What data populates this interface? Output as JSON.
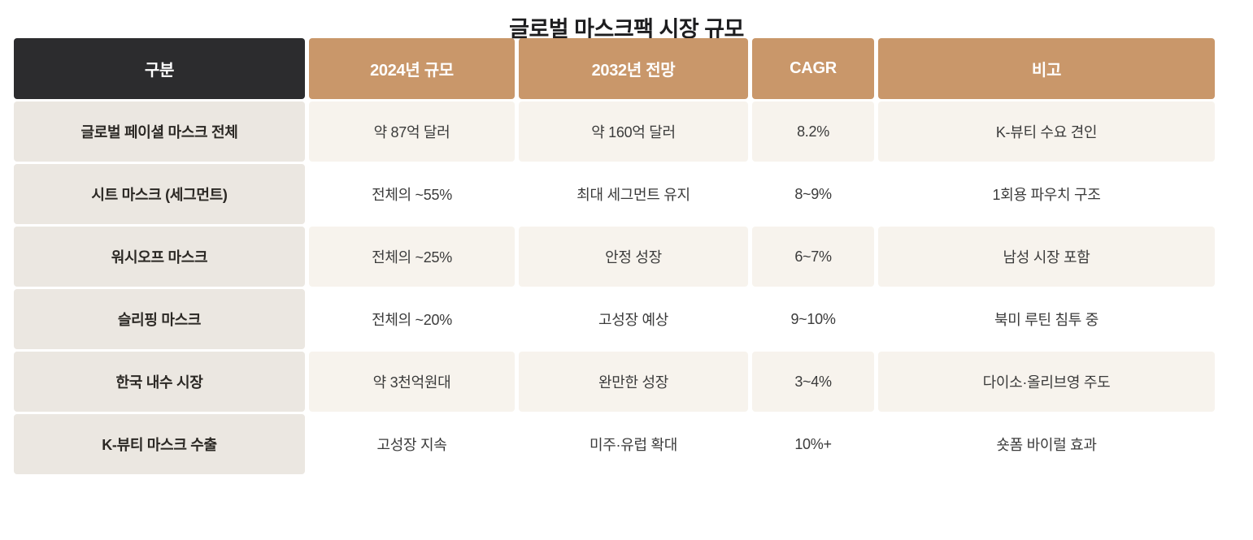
{
  "title": "글로벌 마스크팩 시장 규모",
  "colors": {
    "header_dark": "#2c2c2e",
    "header_tan": "#c9976a",
    "row_label_bg": "#ebe7e1",
    "row_odd_bg": "#f7f3ed",
    "row_even_bg": "#ffffff",
    "title_text": "#1d1d1f",
    "body_text": "#3b3b3b"
  },
  "table": {
    "headers": [
      "구분",
      "2024년 규모",
      "2032년 전망",
      "CAGR",
      "비고"
    ],
    "rows": [
      {
        "category": "글로벌 페이셜 마스크 전체",
        "size_2024": "약 87억 달러",
        "outlook_2032": "약 160억 달러",
        "cagr": "8.2%",
        "note": "K-뷰티 수요 견인"
      },
      {
        "category": "시트 마스크 (세그먼트)",
        "size_2024": "전체의 ~55%",
        "outlook_2032": "최대 세그먼트 유지",
        "cagr": "8~9%",
        "note": "1회용 파우치 구조"
      },
      {
        "category": "워시오프 마스크",
        "size_2024": "전체의 ~25%",
        "outlook_2032": "안정 성장",
        "cagr": "6~7%",
        "note": "남성 시장 포함"
      },
      {
        "category": "슬리핑 마스크",
        "size_2024": "전체의 ~20%",
        "outlook_2032": "고성장 예상",
        "cagr": "9~10%",
        "note": "북미 루틴 침투 중"
      },
      {
        "category": "한국 내수 시장",
        "size_2024": "약 3천억원대",
        "outlook_2032": "완만한 성장",
        "cagr": "3~4%",
        "note": "다이소·올리브영 주도"
      },
      {
        "category": "K-뷰티 마스크 수출",
        "size_2024": "고성장 지속",
        "outlook_2032": "미주·유럽 확대",
        "cagr": "10%+",
        "note": "숏폼 바이럴 효과"
      }
    ]
  },
  "chart_data": {
    "type": "table",
    "title": "글로벌 마스크팩 시장 규모",
    "columns": [
      "구분",
      "2024년 규모",
      "2032년 전망",
      "CAGR",
      "비고"
    ],
    "rows": [
      [
        "글로벌 페이셜 마스크 전체",
        "약 87억 달러",
        "약 160억 달러",
        "8.2%",
        "K-뷰티 수요 견인"
      ],
      [
        "시트 마스크 (세그먼트)",
        "전체의 ~55%",
        "최대 세그먼트 유지",
        "8~9%",
        "1회용 파우치 구조"
      ],
      [
        "워시오프 마스크",
        "전체의 ~25%",
        "안정 성장",
        "6~7%",
        "남성 시장 포함"
      ],
      [
        "슬리핑 마스크",
        "전체의 ~20%",
        "고성장 예상",
        "9~10%",
        "북미 루틴 침투 중"
      ],
      [
        "한국 내수 시장",
        "약 3천억원대",
        "완만한 성장",
        "3~4%",
        "다이소·올리브영 주도"
      ],
      [
        "K-뷰티 마스크 수출",
        "고성장 지속",
        "미주·유럽 확대",
        "10%+",
        "숏폼 바이럴 효과"
      ]
    ]
  }
}
